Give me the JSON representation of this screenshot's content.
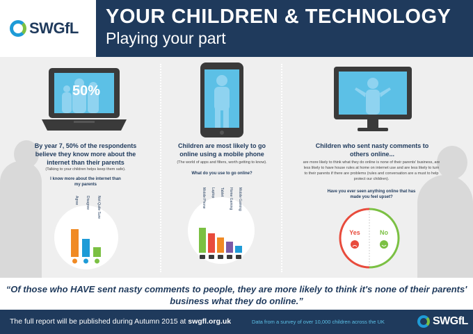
{
  "header": {
    "logo_text": "SWGfL",
    "title": "YOUR CHILDREN & TECHNOLOGY",
    "subtitle": "Playing your part"
  },
  "panel1": {
    "screen_percent": "50%",
    "headline": "By year 7, 50% of the respondents believe they know more about the internet than their parents",
    "note": "(Talking to your children helps keep them safe).",
    "question": "I know more about the internet than my parents",
    "chart_labels": [
      "Agree",
      "Disagree",
      "Not Quite Sure"
    ]
  },
  "panel2": {
    "headline": "Children are most likely to go online using a mobile phone",
    "note": "(The world of apps and filters, worth getting to know).",
    "question": "What do you use to go online?",
    "chart_labels": [
      "Mobile Phone",
      "Laptop",
      "Tablet",
      "Home Gaming",
      "Mobile Gaming"
    ]
  },
  "panel3": {
    "headline": "Children who sent nasty comments to others online...",
    "note": "are more likely to think what they do online is none of their parents' business, are less likely to have house rules at home on internet use and are less likely to turn to their parents if there are problems (rules and conversation are a must to help protect our children).",
    "question": "Have you ever seen anything online that has made you feel upset?",
    "yes_label": "Yes",
    "no_label": "No"
  },
  "quote": "“Of those who HAVE sent nasty comments to people, they are more likely to think it's none of their parents' business what they do online.”",
  "footer": {
    "text_prefix": "The full report will be published during Autumn 2015 at ",
    "text_link": "swgfl.org.uk",
    "survey_note": "Data from a survey of over 10,000 children across the UK",
    "logo_text": "SWGfL"
  },
  "colors": {
    "navy": "#1f3a5c",
    "orange": "#f08a24",
    "blue": "#1e9bd7",
    "green": "#7bc043",
    "red": "#e84b3c",
    "purple": "#7b5aa6"
  }
}
